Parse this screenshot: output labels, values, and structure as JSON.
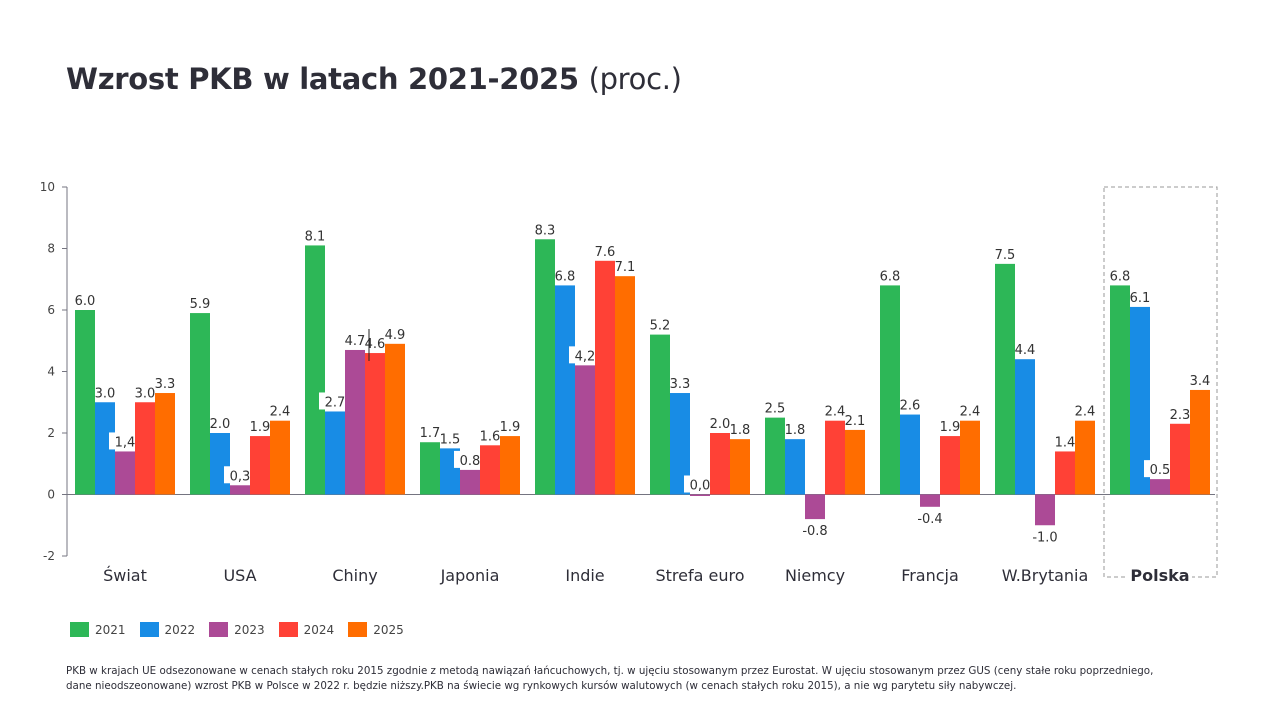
{
  "title": {
    "main": "Wzrost PKB w latach 2021-2025",
    "sub": "(proc.)"
  },
  "chart_data": {
    "type": "bar",
    "title": "Wzrost PKB w latach 2021-2025 (proc.)",
    "xlabel": "",
    "ylabel": "",
    "ylim": [
      -2,
      10
    ],
    "yticks": [
      -2,
      0,
      2,
      4,
      6,
      8,
      10
    ],
    "grid": false,
    "legend_position": "bottom-left",
    "highlighted_category": "Polska",
    "categories": [
      "Świat",
      "USA",
      "Chiny",
      "Japonia",
      "Indie",
      "Strefa euro",
      "Niemcy",
      "Francja",
      "W.Brytania",
      "Polska"
    ],
    "series": [
      {
        "name": "2021",
        "color": "#2db757",
        "values": [
          6.0,
          5.9,
          8.1,
          1.7,
          8.3,
          5.2,
          2.5,
          6.8,
          7.5,
          6.8
        ],
        "labels": [
          "6.0",
          "5.9",
          "8.1",
          "1.7",
          "8.3",
          "5.2",
          "2.5",
          "6.8",
          "7.5",
          "6.8"
        ]
      },
      {
        "name": "2022",
        "color": "#188ce5",
        "values": [
          3.0,
          2.0,
          2.7,
          1.5,
          6.8,
          3.3,
          1.8,
          2.6,
          4.4,
          6.1
        ],
        "labels": [
          "3.0",
          "2.0",
          "2.7",
          "1.5",
          "6.8",
          "3.3",
          "1.8",
          "2.6",
          "4.4",
          "6.1"
        ]
      },
      {
        "name": "2023",
        "color": "#ac4a96",
        "values": [
          1.4,
          0.3,
          4.7,
          0.8,
          4.2,
          0.0,
          -0.8,
          -0.4,
          -1.0,
          0.5
        ],
        "labels": [
          "1,4",
          "0,3",
          "4.7",
          "0.8",
          "4,2",
          "0,0",
          "-0.8",
          "-0.4",
          "-1.0",
          "0.5"
        ]
      },
      {
        "name": "2024",
        "color": "#ff4136",
        "values": [
          3.0,
          1.9,
          4.6,
          1.6,
          7.6,
          2.0,
          2.4,
          1.9,
          1.4,
          2.3
        ],
        "labels": [
          "3.0",
          "1.9",
          "4.6",
          "1.6",
          "7.6",
          "2.0",
          "2.4",
          "1.9",
          "1.4",
          "2.3"
        ]
      },
      {
        "name": "2025",
        "color": "#ff6d00",
        "values": [
          3.3,
          2.4,
          4.9,
          1.9,
          7.1,
          1.8,
          2.1,
          2.4,
          2.4,
          3.4
        ],
        "labels": [
          "3.3",
          "2.4",
          "4.9",
          "1.9",
          "7.1",
          "1.8",
          "2.1",
          "2.4",
          "2.4",
          "3.4"
        ]
      }
    ]
  },
  "footnote": {
    "line1": "PKB w krajach UE odsezonowane w cenach stałych roku 2015  zgodnie z metodą nawiązań łańcuchowych, tj. w ujęciu stosowanym przez Eurostat. W ujęciu stosowanym przez GUS (ceny stałe roku poprzedniego,",
    "line2": "dane nieodszeonowane) wzrost PKB w Polsce w 2022 r. będzie niższy.PKB na świecie wg rynkowych kursów walutowych (w cenach stałych roku 2015), a nie wg parytetu siły nabywczej."
  }
}
